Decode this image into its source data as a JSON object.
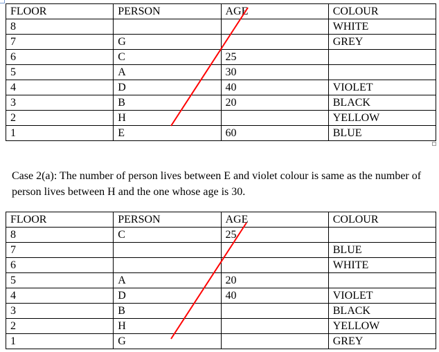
{
  "table1": {
    "headers": [
      "FLOOR",
      "PERSON",
      "AGE",
      "COLOUR"
    ],
    "rows": [
      [
        "8",
        "",
        "",
        "WHITE"
      ],
      [
        "7",
        "G",
        "",
        "GREY"
      ],
      [
        "6",
        "C",
        "25",
        ""
      ],
      [
        "5",
        "A",
        "30",
        ""
      ],
      [
        "4",
        "D",
        "40",
        "VIOLET"
      ],
      [
        "3",
        "B",
        "20",
        "BLACK"
      ],
      [
        "2",
        "H",
        "",
        "YELLOW"
      ],
      [
        "1",
        "E",
        "60",
        "BLUE"
      ]
    ]
  },
  "paragraph": "Case 2(a): The number of person lives between E and violet colour is same as the number of person lives between H and the one whose age is 30.",
  "table2": {
    "headers": [
      "FLOOR",
      "PERSON",
      "AGE",
      "COLOUR"
    ],
    "rows": [
      [
        "8",
        "C",
        "25",
        ""
      ],
      [
        "7",
        "",
        "",
        "BLUE"
      ],
      [
        "6",
        "",
        "",
        "WHITE"
      ],
      [
        "5",
        "A",
        "20",
        ""
      ],
      [
        "4",
        "D",
        "40",
        "VIOLET"
      ],
      [
        "3",
        "B",
        "",
        "BLACK"
      ],
      [
        "2",
        "H",
        "",
        "YELLOW"
      ],
      [
        "1",
        "G",
        "",
        "GREY"
      ]
    ]
  },
  "colors": {
    "strike_line": "#ff0000"
  }
}
